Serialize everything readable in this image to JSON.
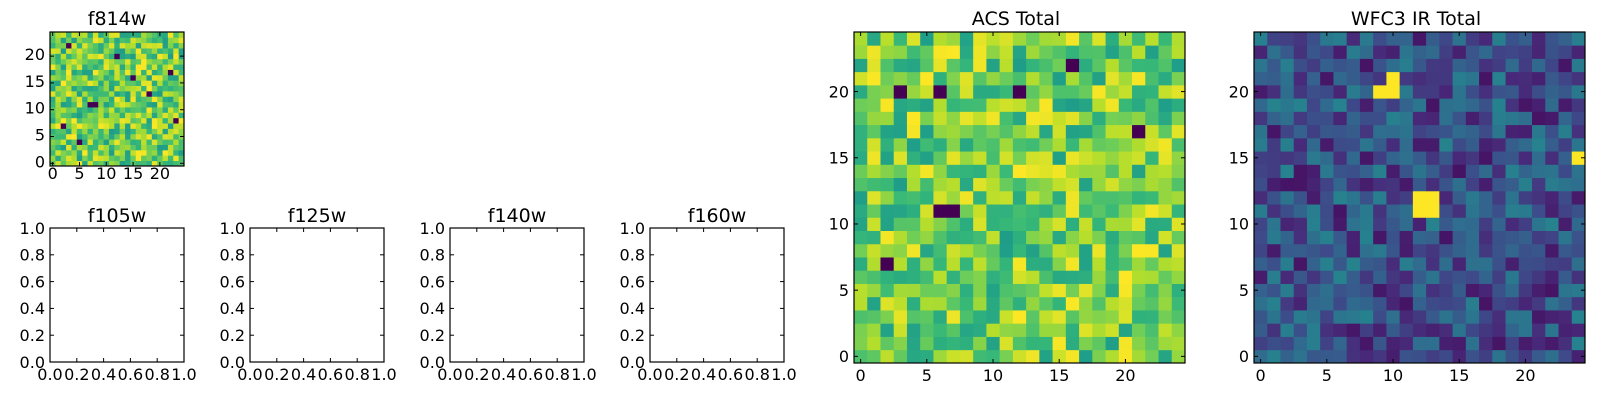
{
  "chart_data": [
    {
      "id": "f814w",
      "type": "heatmap",
      "title": "f814w",
      "grid_size": 25,
      "colormap": "viridis",
      "x_ticks": [
        "0",
        "5",
        "10",
        "15",
        "20"
      ],
      "y_ticks": [
        "0",
        "5",
        "10",
        "15",
        "20"
      ],
      "xlim": [
        -0.5,
        24.5
      ],
      "ylim": [
        -0.5,
        24.5
      ],
      "value_range": [
        0.0,
        1.0
      ],
      "typical_range": [
        0.55,
        1.0
      ],
      "low_value_cells": [
        [
          3,
          22
        ],
        [
          12,
          20
        ],
        [
          7,
          11
        ],
        [
          8,
          11
        ],
        [
          2,
          7
        ],
        [
          18,
          13
        ],
        [
          22,
          17
        ],
        [
          5,
          4
        ],
        [
          15,
          16
        ],
        [
          23,
          8
        ]
      ]
    },
    {
      "id": "f105w",
      "type": "empty",
      "title": "f105w",
      "x_ticks": [
        "0.0",
        "0.2",
        "0.4",
        "0.6",
        "0.8",
        "1.0"
      ],
      "y_ticks": [
        "0.0",
        "0.2",
        "0.4",
        "0.6",
        "0.8",
        "1.0"
      ],
      "xlim": [
        0,
        1
      ],
      "ylim": [
        0,
        1
      ]
    },
    {
      "id": "f125w",
      "type": "empty",
      "title": "f125w",
      "x_ticks": [
        "0.0",
        "0.2",
        "0.4",
        "0.6",
        "0.8",
        "1.0"
      ],
      "y_ticks": [
        "0.0",
        "0.2",
        "0.4",
        "0.6",
        "0.8",
        "1.0"
      ],
      "xlim": [
        0,
        1
      ],
      "ylim": [
        0,
        1
      ]
    },
    {
      "id": "f140w",
      "type": "empty",
      "title": "f140w",
      "x_ticks": [
        "0.0",
        "0.2",
        "0.4",
        "0.6",
        "0.8",
        "1.0"
      ],
      "y_ticks": [
        "0.0",
        "0.2",
        "0.4",
        "0.6",
        "0.8",
        "1.0"
      ],
      "xlim": [
        0,
        1
      ],
      "ylim": [
        0,
        1
      ]
    },
    {
      "id": "f160w",
      "type": "empty",
      "title": "f160w",
      "x_ticks": [
        "0.0",
        "0.2",
        "0.4",
        "0.6",
        "0.8",
        "1.0"
      ],
      "y_ticks": [
        "0.0",
        "0.2",
        "0.4",
        "0.6",
        "0.8",
        "1.0"
      ],
      "xlim": [
        0,
        1
      ],
      "ylim": [
        0,
        1
      ]
    },
    {
      "id": "acs_total",
      "type": "heatmap",
      "title": "ACS Total",
      "grid_size": 25,
      "colormap": "viridis",
      "x_ticks": [
        "0",
        "5",
        "10",
        "15",
        "20"
      ],
      "y_ticks": [
        "0",
        "5",
        "10",
        "15",
        "20"
      ],
      "xlim": [
        -0.5,
        24.5
      ],
      "ylim": [
        -0.5,
        24.5
      ],
      "value_range": [
        0.0,
        1.0
      ],
      "typical_range": [
        0.55,
        1.0
      ],
      "low_value_cells": [
        [
          3,
          20
        ],
        [
          6,
          20
        ],
        [
          12,
          20
        ],
        [
          16,
          22
        ],
        [
          21,
          17
        ],
        [
          6,
          11
        ],
        [
          7,
          11
        ],
        [
          2,
          7
        ]
      ]
    },
    {
      "id": "wfc3_ir_total",
      "type": "heatmap",
      "title": "WFC3 IR Total",
      "grid_size": 25,
      "colormap": "viridis",
      "x_ticks": [
        "0",
        "5",
        "10",
        "15",
        "20"
      ],
      "y_ticks": [
        "0",
        "5",
        "10",
        "15",
        "20"
      ],
      "xlim": [
        -0.5,
        24.5
      ],
      "ylim": [
        -0.5,
        24.5
      ],
      "value_range": [
        0.0,
        1.0
      ],
      "typical_range": [
        0.05,
        0.45
      ],
      "high_value_cells": [
        [
          9,
          20
        ],
        [
          10,
          20
        ],
        [
          10,
          21
        ],
        [
          12,
          11
        ],
        [
          13,
          11
        ],
        [
          12,
          12
        ],
        [
          13,
          12
        ],
        [
          24,
          15
        ]
      ]
    }
  ]
}
